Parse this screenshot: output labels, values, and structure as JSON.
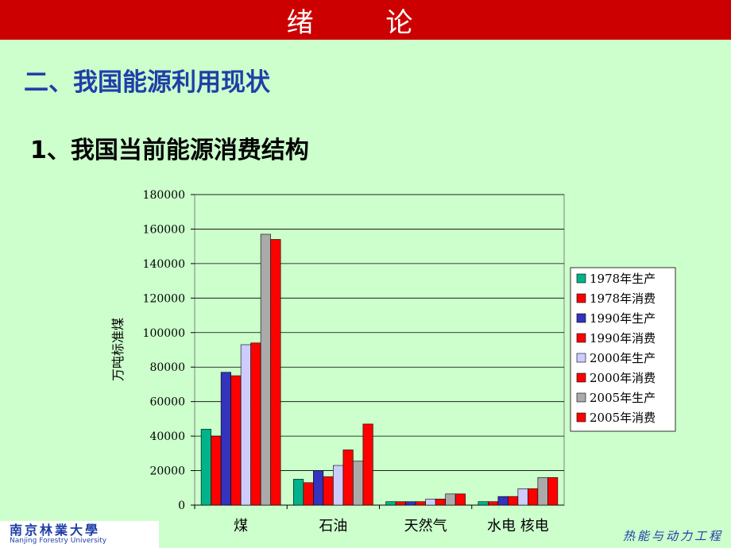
{
  "header": {
    "title": "绪  论"
  },
  "section_heading": "二、我国能源利用现状",
  "subheading": "1、我国当前能源消费结构",
  "footer": {
    "logo_cn": "南京林業大學",
    "logo_en": "Nanjing Forestry University",
    "department": "热能与动力工程"
  },
  "colors": {
    "title_bar": "#cc0000",
    "background": "#ccffcc",
    "heading": "#1f3fa8"
  },
  "chart_data": {
    "type": "bar",
    "title": "",
    "xlabel": "",
    "ylabel": "万吨标准煤",
    "ylim": [
      0,
      180000
    ],
    "yticks": [
      0,
      20000,
      40000,
      60000,
      80000,
      100000,
      120000,
      140000,
      160000,
      180000
    ],
    "grid": true,
    "legend_position": "right",
    "categories": [
      "煤",
      "石油",
      "天然气",
      "水电  核电"
    ],
    "series": [
      {
        "name": "1978年生产",
        "color": "#00b38a",
        "values": [
          44000,
          15000,
          2000,
          2000
        ]
      },
      {
        "name": "1978年消费",
        "color": "#ff0000",
        "values": [
          40000,
          13000,
          2000,
          2000
        ]
      },
      {
        "name": "1990年生产",
        "color": "#3333bb",
        "values": [
          77000,
          20000,
          2000,
          5000
        ]
      },
      {
        "name": "1990年消费",
        "color": "#ff0000",
        "values": [
          75000,
          16500,
          2000,
          5000
        ]
      },
      {
        "name": "2000年生产",
        "color": "#ccccff",
        "values": [
          93000,
          23000,
          3500,
          9500
        ]
      },
      {
        "name": "2000年消费",
        "color": "#ff0000",
        "values": [
          94000,
          32000,
          3500,
          9500
        ]
      },
      {
        "name": "2005年生产",
        "color": "#aaaaaa",
        "values": [
          157000,
          25500,
          6500,
          16000
        ]
      },
      {
        "name": "2005年消费",
        "color": "#ff0000",
        "values": [
          154000,
          47000,
          6500,
          16000
        ]
      }
    ]
  }
}
